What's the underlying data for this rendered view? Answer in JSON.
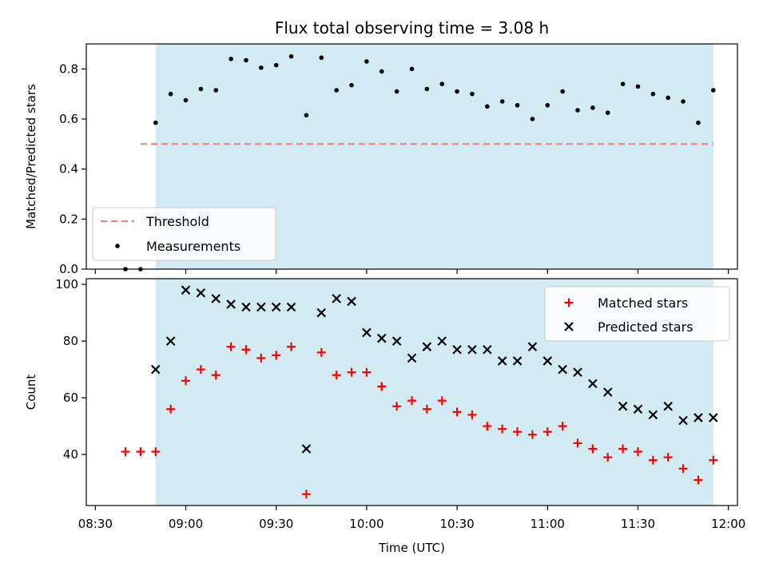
{
  "chart_data": {
    "title": "Flux total observing time = 3.08 h",
    "xlabel": "Time (UTC)",
    "x_ticks": [
      "08:30",
      "09:00",
      "09:30",
      "10:00",
      "10:30",
      "11:00",
      "11:30",
      "12:00"
    ],
    "x_range": [
      "08:30",
      "12:00"
    ],
    "shaded_interval": [
      "08:50",
      "11:55"
    ],
    "colors": {
      "shade": "#add8e6",
      "threshold": "#f08080",
      "measurements": "#000000",
      "matched": "#ff0000",
      "predicted": "#000000"
    },
    "panels": [
      {
        "type": "scatter",
        "ylabel": "Matched/Predicted stars",
        "ylim": [
          0,
          0.9
        ],
        "y_ticks": [
          "0.0",
          "0.2",
          "0.4",
          "0.6",
          "0.8"
        ],
        "legend_position": "lower-left",
        "legend": [
          {
            "label": "Threshold",
            "marker": "dashed-line",
            "color": "#f08080"
          },
          {
            "label": "Measurements",
            "marker": "dot",
            "color": "#000000"
          }
        ],
        "threshold": {
          "value": 0.5,
          "x_start": "08:45",
          "x_end": "11:55"
        },
        "measurements": {
          "x": [
            "08:45",
            "08:50",
            "08:55",
            "09:00",
            "09:05",
            "09:10",
            "09:15",
            "09:20",
            "09:25",
            "09:30",
            "09:35",
            "09:40",
            "09:45",
            "09:50",
            "09:55",
            "10:00",
            "10:05",
            "10:10",
            "10:15",
            "10:20",
            "10:25",
            "10:30",
            "10:35",
            "10:40",
            "10:45",
            "10:50",
            "10:55",
            "11:00",
            "11:05",
            "11:10",
            "11:15",
            "11:20",
            "11:25",
            "11:30",
            "11:35",
            "11:40",
            "11:45",
            "11:50",
            "11:55"
          ],
          "y": [
            0.0,
            0.585,
            0.7,
            0.675,
            0.72,
            0.715,
            0.84,
            0.835,
            0.805,
            0.815,
            0.85,
            0.615,
            0.845,
            0.715,
            0.735,
            0.83,
            0.79,
            0.71,
            0.8,
            0.72,
            0.74,
            0.71,
            0.7,
            0.65,
            0.67,
            0.655,
            0.6,
            0.655,
            0.71,
            0.635,
            0.645,
            0.625,
            0.74,
            0.73,
            0.7,
            0.685,
            0.67,
            0.585,
            0.715
          ]
        },
        "extra_points": {
          "x": [
            "08:40"
          ],
          "y": [
            0.0
          ]
        }
      },
      {
        "type": "scatter",
        "ylabel": "Count",
        "ylim": [
          22,
          102
        ],
        "y_ticks": [
          "40",
          "60",
          "80",
          "100"
        ],
        "legend_position": "upper-right",
        "legend": [
          {
            "label": "Matched stars",
            "marker": "plus",
            "color": "#ff0000"
          },
          {
            "label": "Predicted stars",
            "marker": "x",
            "color": "#000000"
          }
        ],
        "series": [
          {
            "name": "Matched stars",
            "marker": "plus",
            "x": [
              "08:40",
              "08:45",
              "08:50",
              "08:55",
              "09:00",
              "09:05",
              "09:10",
              "09:15",
              "09:20",
              "09:25",
              "09:30",
              "09:35",
              "09:40",
              "09:45",
              "09:50",
              "09:55",
              "10:00",
              "10:05",
              "10:10",
              "10:15",
              "10:20",
              "10:25",
              "10:30",
              "10:35",
              "10:40",
              "10:45",
              "10:50",
              "10:55",
              "11:00",
              "11:05",
              "11:10",
              "11:15",
              "11:20",
              "11:25",
              "11:30",
              "11:35",
              "11:40",
              "11:45",
              "11:50",
              "11:55"
            ],
            "y": [
              41,
              41,
              41,
              56,
              66,
              70,
              68,
              78,
              77,
              74,
              75,
              78,
              26,
              76,
              68,
              69,
              69,
              64,
              57,
              59,
              56,
              59,
              55,
              54,
              50,
              49,
              48,
              47,
              48,
              50,
              44,
              42,
              39,
              42,
              41,
              38,
              39,
              35,
              31,
              38
            ]
          },
          {
            "name": "Predicted stars",
            "marker": "x",
            "x": [
              "08:50",
              "08:55",
              "09:00",
              "09:05",
              "09:10",
              "09:15",
              "09:20",
              "09:25",
              "09:30",
              "09:35",
              "09:40",
              "09:45",
              "09:50",
              "09:55",
              "10:00",
              "10:05",
              "10:10",
              "10:15",
              "10:20",
              "10:25",
              "10:30",
              "10:35",
              "10:40",
              "10:45",
              "10:50",
              "10:55",
              "11:00",
              "11:05",
              "11:10",
              "11:15",
              "11:20",
              "11:25",
              "11:30",
              "11:35",
              "11:40",
              "11:45",
              "11:50",
              "11:55"
            ],
            "y": [
              70,
              80,
              98,
              97,
              95,
              93,
              92,
              92,
              92,
              92,
              42,
              90,
              95,
              94,
              83,
              81,
              80,
              74,
              78,
              80,
              77,
              77,
              77,
              73,
              73,
              78,
              73,
              70,
              69,
              65,
              62,
              57,
              56,
              54,
              57,
              52,
              53,
              53
            ]
          }
        ]
      }
    ]
  }
}
